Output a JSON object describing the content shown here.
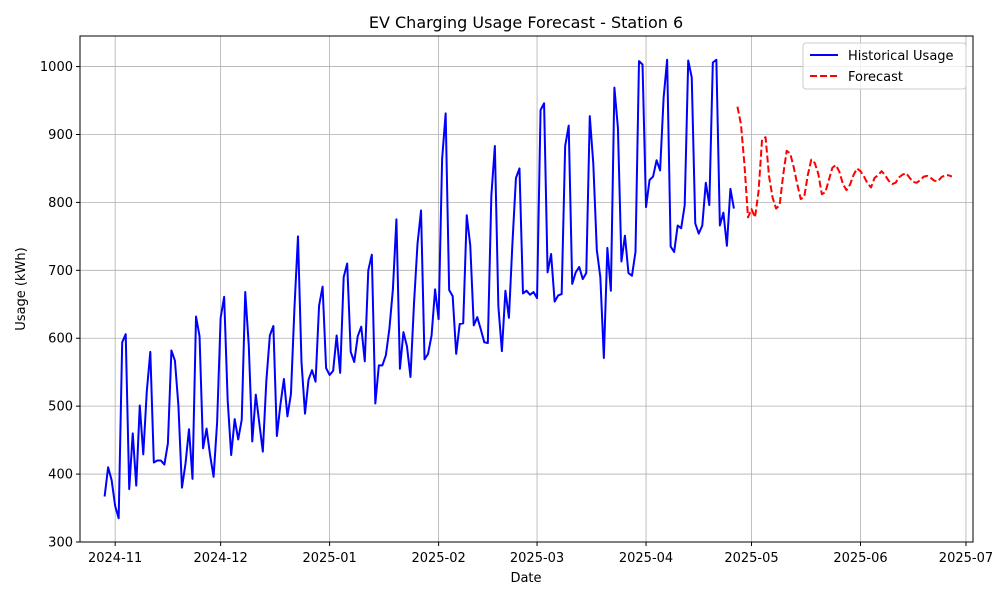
{
  "chart_data": {
    "type": "line",
    "title": "EV Charging Usage Forecast - Station 6",
    "xlabel": "Date",
    "ylabel": "Usage (kWh)",
    "xlim": [
      "2024-10-22",
      "2025-07-03"
    ],
    "ylim": [
      300,
      1045
    ],
    "x_ticks": [
      "2024-11-01",
      "2024-12-01",
      "2025-01-01",
      "2025-02-01",
      "2025-03-01",
      "2025-04-01",
      "2025-05-01",
      "2025-06-01",
      "2025-07-01"
    ],
    "x_tick_labels": [
      "2024-11",
      "2024-12",
      "2025-01",
      "2025-02",
      "2025-03",
      "2025-04",
      "2025-05",
      "2025-06",
      "2025-07"
    ],
    "y_ticks": [
      300,
      400,
      500,
      600,
      700,
      800,
      900,
      1000
    ],
    "y_tick_labels": [
      "300",
      "400",
      "500",
      "600",
      "700",
      "800",
      "900",
      "1000"
    ],
    "grid": true,
    "legend_position": "top-right",
    "series": [
      {
        "name": "Historical Usage",
        "color": "#0000ff",
        "style": "solid",
        "start_date": "2024-10-29",
        "values": [
          367,
          410,
          391,
          353,
          335,
          594,
          606,
          378,
          460,
          383,
          501,
          429,
          522,
          580,
          417,
          420,
          420,
          414,
          445,
          582,
          567,
          500,
          380,
          415,
          466,
          393,
          632,
          603,
          438,
          467,
          428,
          396,
          476,
          630,
          661,
          509,
          428,
          481,
          451,
          480,
          668,
          590,
          448,
          517,
          475,
          433,
          537,
          604,
          618,
          456,
          502,
          540,
          485,
          518,
          645,
          750,
          565,
          489,
          539,
          553,
          536,
          648,
          676,
          556,
          546,
          552,
          604,
          549,
          690,
          710,
          580,
          565,
          603,
          617,
          566,
          700,
          723,
          504,
          560,
          560,
          575,
          614,
          672,
          775,
          555,
          609,
          588,
          543,
          651,
          739,
          788,
          569,
          577,
          604,
          672,
          628,
          864,
          931,
          671,
          662,
          577,
          621,
          622,
          781,
          737,
          619,
          631,
          613,
          594,
          593,
          810,
          883,
          647,
          581,
          670,
          630,
          740,
          836,
          850,
          666,
          670,
          664,
          668,
          659,
          936,
          946,
          697,
          724,
          654,
          663,
          665,
          883,
          913,
          680,
          697,
          705,
          687,
          696,
          927,
          857,
          730,
          690,
          571,
          733,
          670,
          969,
          910,
          713,
          751,
          696,
          692,
          727,
          1008,
          1003,
          793,
          833,
          838,
          862,
          847,
          954,
          1010,
          735,
          727,
          766,
          762,
          796,
          1009,
          984,
          769,
          754,
          766,
          829,
          796,
          1006,
          1010,
          766,
          785,
          736,
          820,
          791
        ]
      },
      {
        "name": "Forecast",
        "color": "#ff0000",
        "style": "dashed",
        "start_date": "2025-04-27",
        "values": [
          941,
          915,
          855,
          778,
          790,
          778,
          816,
          893,
          896,
          838,
          807,
          791,
          796,
          840,
          876,
          872,
          852,
          827,
          805,
          808,
          840,
          863,
          858,
          842,
          812,
          815,
          833,
          851,
          855,
          845,
          827,
          818,
          826,
          840,
          850,
          846,
          838,
          828,
          822,
          836,
          840,
          846,
          840,
          832,
          827,
          829,
          837,
          841,
          843,
          836,
          830,
          829,
          833,
          838,
          839,
          836,
          832,
          831,
          837,
          840,
          840,
          838
        ]
      }
    ]
  }
}
